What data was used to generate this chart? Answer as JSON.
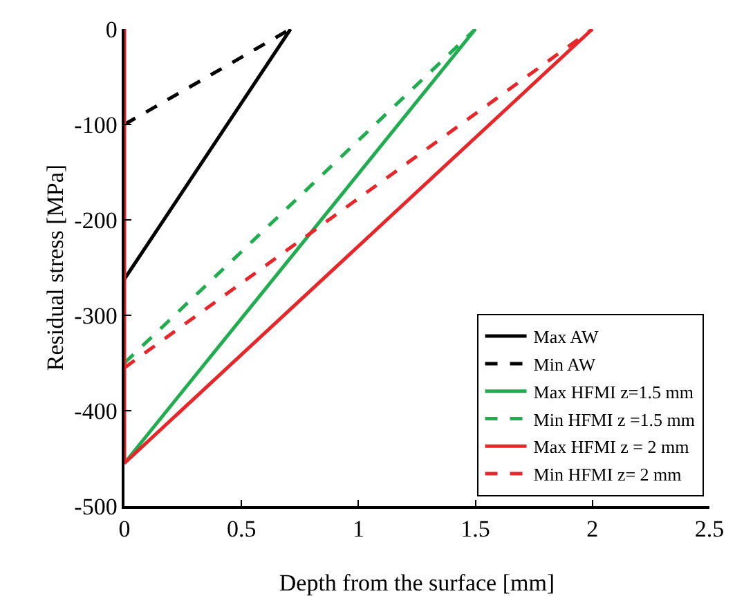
{
  "chart_data": {
    "type": "line",
    "xlabel": "Depth from the surface [mm]",
    "ylabel": "Residual stress [MPa]",
    "xlim": [
      0,
      2.5
    ],
    "xticks": [
      0,
      0.5,
      1,
      1.5,
      2,
      2.5
    ],
    "ylim": [
      -500,
      0
    ],
    "yticks": [
      -500,
      -400,
      -300,
      -200,
      -100,
      0
    ],
    "grid": false,
    "legend": "bottom right",
    "marker": "none",
    "series": [
      {
        "name": "Max AW",
        "color": "#000000",
        "line_style": "solid",
        "x": [
          0,
          0.71
        ],
        "values": [
          -262,
          0
        ]
      },
      {
        "name": "Min AW",
        "color": "#000000",
        "line_style": "dashed",
        "x": [
          0,
          0.71
        ],
        "values": [
          -100,
          0
        ]
      },
      {
        "name": "Max HFMI z=1.5 mm",
        "color": "#1fad4f",
        "line_style": "solid",
        "x": [
          0,
          1.5
        ],
        "values": [
          -455,
          0
        ]
      },
      {
        "name": "Min HFMI z =1.5 mm",
        "color": "#1fad4f",
        "line_style": "dashed",
        "x": [
          0,
          1.5
        ],
        "values": [
          -350,
          0
        ]
      },
      {
        "name": "Max HFMI z = 2 mm",
        "color": "#e8262a",
        "line_style": "solid",
        "x": [
          0,
          0,
          2
        ],
        "values": [
          0,
          -455,
          0
        ]
      },
      {
        "name": "Min HFMI z= 2 mm",
        "color": "#e8262a",
        "line_style": "dashed",
        "x": [
          0,
          2
        ],
        "values": [
          -355,
          0
        ]
      }
    ]
  }
}
